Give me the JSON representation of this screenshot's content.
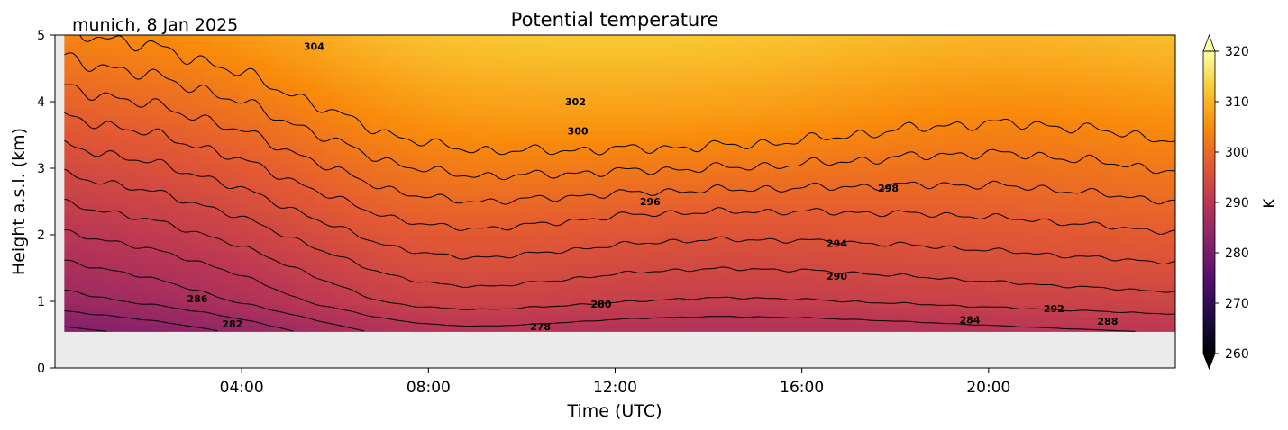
{
  "chart_data": {
    "type": "heatmap",
    "title": "Potential temperature",
    "subtitle": "munich, 8 Jan 2025",
    "xlabel": "Time (UTC)",
    "ylabel": "Height a.s.l. (km)",
    "x_range_hours": [
      0,
      24
    ],
    "xticks": [
      4,
      8,
      12,
      16,
      20
    ],
    "xtick_labels": [
      "04:00",
      "08:00",
      "12:00",
      "16:00",
      "20:00"
    ],
    "ylim": [
      0,
      5
    ],
    "yticks": [
      0,
      1,
      2,
      3,
      4,
      5
    ],
    "ytick_labels": [
      "0",
      "1",
      "2",
      "3",
      "4",
      "5"
    ],
    "data_height_range_km": [
      0.55,
      5.0
    ],
    "data_time_start_hours": 0.2,
    "missing_color": "#ebebeb",
    "colorbar": {
      "label": "K",
      "vmin": 260,
      "vmax": 320,
      "ticks": [
        260,
        270,
        280,
        290,
        300,
        310,
        320
      ],
      "tick_labels": [
        "260",
        "270",
        "280",
        "290",
        "300",
        "310",
        "320"
      ],
      "extend": "both",
      "colormap": "inferno",
      "colors": [
        "#000004",
        "#1f0c48",
        "#550f6d",
        "#88226a",
        "#ba3655",
        "#e35933",
        "#f98c0a",
        "#f9c932",
        "#fcffa4"
      ]
    },
    "contour_interval_K": 2,
    "contour_levels": [
      278,
      280,
      282,
      284,
      286,
      288,
      290,
      292,
      294,
      296,
      298,
      300,
      302,
      304
    ],
    "contour_labels": [
      {
        "text": "286",
        "t": 3.05,
        "z": 1.04
      },
      {
        "text": "282",
        "t": 3.8,
        "z": 0.66
      },
      {
        "text": "278",
        "t": 10.4,
        "z": 0.62
      },
      {
        "text": "280",
        "t": 11.7,
        "z": 0.96
      },
      {
        "text": "296",
        "t": 12.75,
        "z": 2.5
      },
      {
        "text": "302",
        "t": 11.15,
        "z": 4.0
      },
      {
        "text": "300",
        "t": 11.2,
        "z": 3.56
      },
      {
        "text": "304",
        "t": 5.55,
        "z": 4.83
      },
      {
        "text": "298",
        "t": 17.85,
        "z": 2.7
      },
      {
        "text": "294",
        "t": 16.75,
        "z": 1.87
      },
      {
        "text": "290",
        "t": 16.75,
        "z": 1.38
      },
      {
        "text": "284",
        "t": 19.6,
        "z": 0.72
      },
      {
        "text": "292",
        "t": 21.4,
        "z": 0.89
      },
      {
        "text": "288",
        "t": 22.55,
        "z": 0.7
      }
    ]
  }
}
